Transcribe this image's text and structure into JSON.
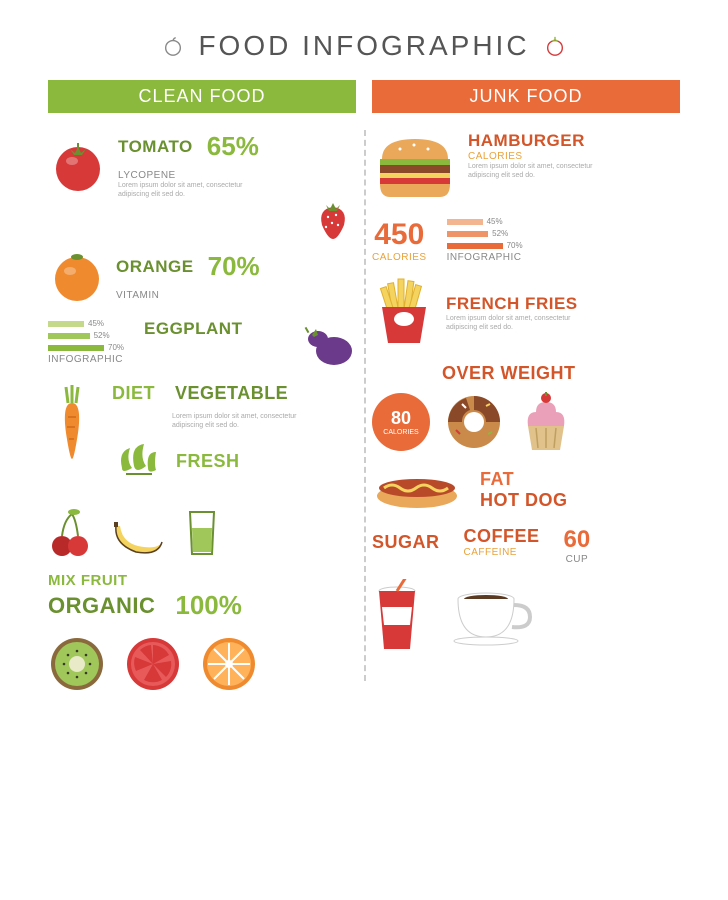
{
  "title": "FOOD INFOGRAPHIC",
  "colors": {
    "green": "#8bb93d",
    "green_dark": "#6a9030",
    "orange": "#e96b3a",
    "orange_dark": "#d3562a",
    "red": "#d73838",
    "brown": "#8a5a2d",
    "grey": "#888888",
    "text_dark": "#555555",
    "lorem": "#aaaaaa"
  },
  "clean": {
    "header": "CLEAN FOOD",
    "tomato": {
      "name": "TOMATO",
      "pct": "65%",
      "nutrient": "LYCOPENE",
      "name_color": "#6a9030",
      "pct_color": "#8bb93d",
      "sub_color": "#888"
    },
    "orange": {
      "name": "ORANGE",
      "pct": "70%",
      "nutrient": "VITAMIN",
      "name_color": "#6a9030",
      "pct_color": "#8bb93d",
      "sub_color": "#888"
    },
    "eggplant": {
      "name": "EGGPLANT",
      "name_color": "#6a9030"
    },
    "bars": {
      "values": [
        45,
        52,
        70
      ],
      "labels": [
        "45%",
        "52%",
        "70%"
      ],
      "colors": [
        "#c5d98a",
        "#a0c75a",
        "#8bb93d"
      ],
      "max_width": 80,
      "info_label": "INFOGRAPHIC"
    },
    "diet": {
      "label": "DIET",
      "color": "#8bb93d"
    },
    "vegetable": {
      "label": "VEGETABLE",
      "color": "#6a9030"
    },
    "fresh": {
      "label": "FRESH",
      "color": "#8bb93d"
    },
    "mixfruit": {
      "label": "MIX FRUIT",
      "color": "#8bb93d"
    },
    "organic": {
      "label": "ORGANIC",
      "color": "#6a9030"
    },
    "hundred": {
      "label": "100%",
      "color": "#8bb93d"
    },
    "lorem": "Lorem ipsum dolor sit amet, consectetur adipiscing elit sed do."
  },
  "junk": {
    "header": "JUNK FOOD",
    "hamburger": {
      "name": "HAMBURGER",
      "sub": "CALORIES",
      "name_color": "#d3562a",
      "sub_color": "#e9a23a"
    },
    "calories_big": {
      "num": "450",
      "sub": "CALORIES",
      "color": "#e96b3a"
    },
    "bars": {
      "values": [
        45,
        52,
        70
      ],
      "labels": [
        "45%",
        "52%",
        "70%"
      ],
      "colors": [
        "#f3b58f",
        "#ef9468",
        "#e96b3a"
      ],
      "max_width": 80,
      "info_label": "INFOGRAPHIC"
    },
    "fries": {
      "name": "FRENCH FRIES",
      "color": "#d3562a"
    },
    "overweight": {
      "label": "OVER WEIGHT",
      "color": "#d3562a"
    },
    "bubble": {
      "num": "80",
      "sub": "CALORIES",
      "bg": "#e96b3a"
    },
    "fat": {
      "label": "FAT",
      "color": "#e96b3a"
    },
    "hotdog": {
      "label": "HOT DOG",
      "color": "#d3562a"
    },
    "sugar": {
      "label": "SUGAR",
      "color": "#d3562a"
    },
    "coffee": {
      "label": "COFFEE",
      "sub": "CAFFEINE",
      "color": "#d3562a",
      "sub_color": "#e9a23a"
    },
    "cup": {
      "num": "60",
      "sub": "CUP",
      "color": "#e96b3a"
    },
    "lorem": "Lorem ipsum dolor sit amet, consectetur adipiscing elit sed do."
  }
}
